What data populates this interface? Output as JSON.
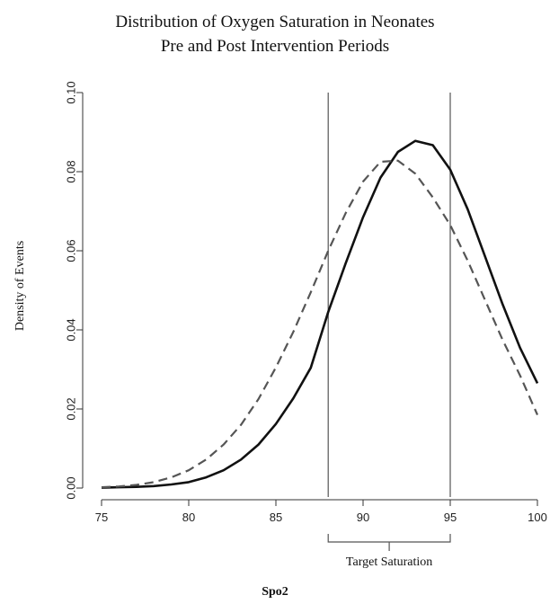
{
  "chart_data": {
    "type": "line",
    "title": "Distribution of Oxygen Saturation in Neonates",
    "subtitle": "Pre and Post Intervention Periods",
    "xlabel": "Spo2",
    "ylabel": "Density of Events",
    "xlim": [
      75,
      100
    ],
    "ylim": [
      0,
      0.1
    ],
    "xticks": [
      "75",
      "80",
      "85",
      "90",
      "95",
      "100"
    ],
    "yticks": [
      "0.00",
      "0.02",
      "0.04",
      "0.06",
      "0.08",
      "0.10"
    ],
    "grid": false,
    "reference_lines_x": [
      88,
      95
    ],
    "annotation": {
      "text": "Target Saturation",
      "from": 88,
      "to": 95
    },
    "series": [
      {
        "style": "solid",
        "color": "#111111",
        "x": [
          75,
          76,
          77,
          78,
          79,
          80,
          81,
          82,
          83,
          84,
          85,
          86,
          87,
          88,
          89,
          90,
          91,
          92,
          93,
          94,
          95,
          96,
          97,
          98,
          99,
          100
        ],
        "y": [
          0.0001,
          0.0002,
          0.0003,
          0.0005,
          0.0009,
          0.0015,
          0.0027,
          0.0045,
          0.0072,
          0.011,
          0.0162,
          0.0227,
          0.0304,
          0.0445,
          0.0568,
          0.0685,
          0.0785,
          0.085,
          0.0878,
          0.0867,
          0.0805,
          0.0705,
          0.0585,
          0.0465,
          0.0355,
          0.0265
        ]
      },
      {
        "style": "dashed",
        "color": "#555555",
        "x": [
          75,
          76,
          77,
          78,
          79,
          80,
          81,
          82,
          83,
          84,
          85,
          86,
          87,
          88,
          89,
          90,
          91,
          92,
          93,
          94,
          95,
          96,
          97,
          98,
          99,
          100
        ],
        "y": [
          0.0002,
          0.0004,
          0.0008,
          0.0015,
          0.0027,
          0.0045,
          0.0072,
          0.011,
          0.016,
          0.0225,
          0.0305,
          0.0395,
          0.0495,
          0.06,
          0.0695,
          0.0775,
          0.0825,
          0.0828,
          0.0795,
          0.0735,
          0.0665,
          0.0575,
          0.0475,
          0.0375,
          0.0285,
          0.0185
        ]
      }
    ]
  }
}
